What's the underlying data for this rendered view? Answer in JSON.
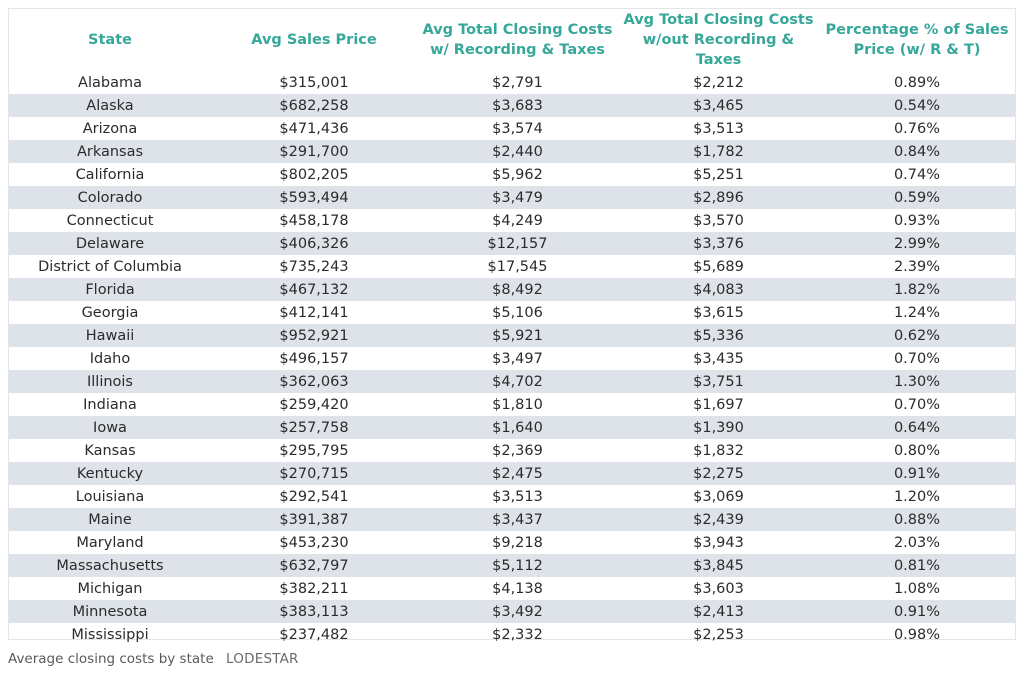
{
  "table": {
    "headers": [
      "State",
      "Avg Sales Price",
      "Avg Total Closing Costs w/ Recording & Taxes",
      "Avg Total Closing Costs w/out Recording & Taxes",
      "Percentage % of Sales Price (w/ R & T)"
    ],
    "rows": [
      [
        "Alabama",
        "$315,001",
        "$2,791",
        "$2,212",
        "0.89%"
      ],
      [
        "Alaska",
        "$682,258",
        "$3,683",
        "$3,465",
        "0.54%"
      ],
      [
        "Arizona",
        "$471,436",
        "$3,574",
        "$3,513",
        "0.76%"
      ],
      [
        "Arkansas",
        "$291,700",
        "$2,440",
        "$1,782",
        "0.84%"
      ],
      [
        "California",
        "$802,205",
        "$5,962",
        "$5,251",
        "0.74%"
      ],
      [
        "Colorado",
        "$593,494",
        "$3,479",
        "$2,896",
        "0.59%"
      ],
      [
        "Connecticut",
        "$458,178",
        "$4,249",
        "$3,570",
        "0.93%"
      ],
      [
        "Delaware",
        "$406,326",
        "$12,157",
        "$3,376",
        "2.99%"
      ],
      [
        "District of Columbia",
        "$735,243",
        "$17,545",
        "$5,689",
        "2.39%"
      ],
      [
        "Florida",
        "$467,132",
        "$8,492",
        "$4,083",
        "1.82%"
      ],
      [
        "Georgia",
        "$412,141",
        "$5,106",
        "$3,615",
        "1.24%"
      ],
      [
        "Hawaii",
        "$952,921",
        "$5,921",
        "$5,336",
        "0.62%"
      ],
      [
        "Idaho",
        "$496,157",
        "$3,497",
        "$3,435",
        "0.70%"
      ],
      [
        "Illinois",
        "$362,063",
        "$4,702",
        "$3,751",
        "1.30%"
      ],
      [
        "Indiana",
        "$259,420",
        "$1,810",
        "$1,697",
        "0.70%"
      ],
      [
        "Iowa",
        "$257,758",
        "$1,640",
        "$1,390",
        "0.64%"
      ],
      [
        "Kansas",
        "$295,795",
        "$2,369",
        "$1,832",
        "0.80%"
      ],
      [
        "Kentucky",
        "$270,715",
        "$2,475",
        "$2,275",
        "0.91%"
      ],
      [
        "Louisiana",
        "$292,541",
        "$3,513",
        "$3,069",
        "1.20%"
      ],
      [
        "Maine",
        "$391,387",
        "$3,437",
        "$2,439",
        "0.88%"
      ],
      [
        "Maryland",
        "$453,230",
        "$9,218",
        "$3,943",
        "2.03%"
      ],
      [
        "Massachusetts",
        "$632,797",
        "$5,112",
        "$3,845",
        "0.81%"
      ],
      [
        "Michigan",
        "$382,211",
        "$4,138",
        "$3,603",
        "1.08%"
      ],
      [
        "Minnesota",
        "$383,113",
        "$3,492",
        "$2,413",
        "0.91%"
      ],
      [
        "Mississippi",
        "$237,482",
        "$2,332",
        "$2,253",
        "0.98%"
      ]
    ]
  },
  "caption": {
    "text": "Average closing costs by state",
    "source": "LODESTAR"
  },
  "colors": {
    "header_text": "#36a89a",
    "stripe": "#dde3e8"
  }
}
